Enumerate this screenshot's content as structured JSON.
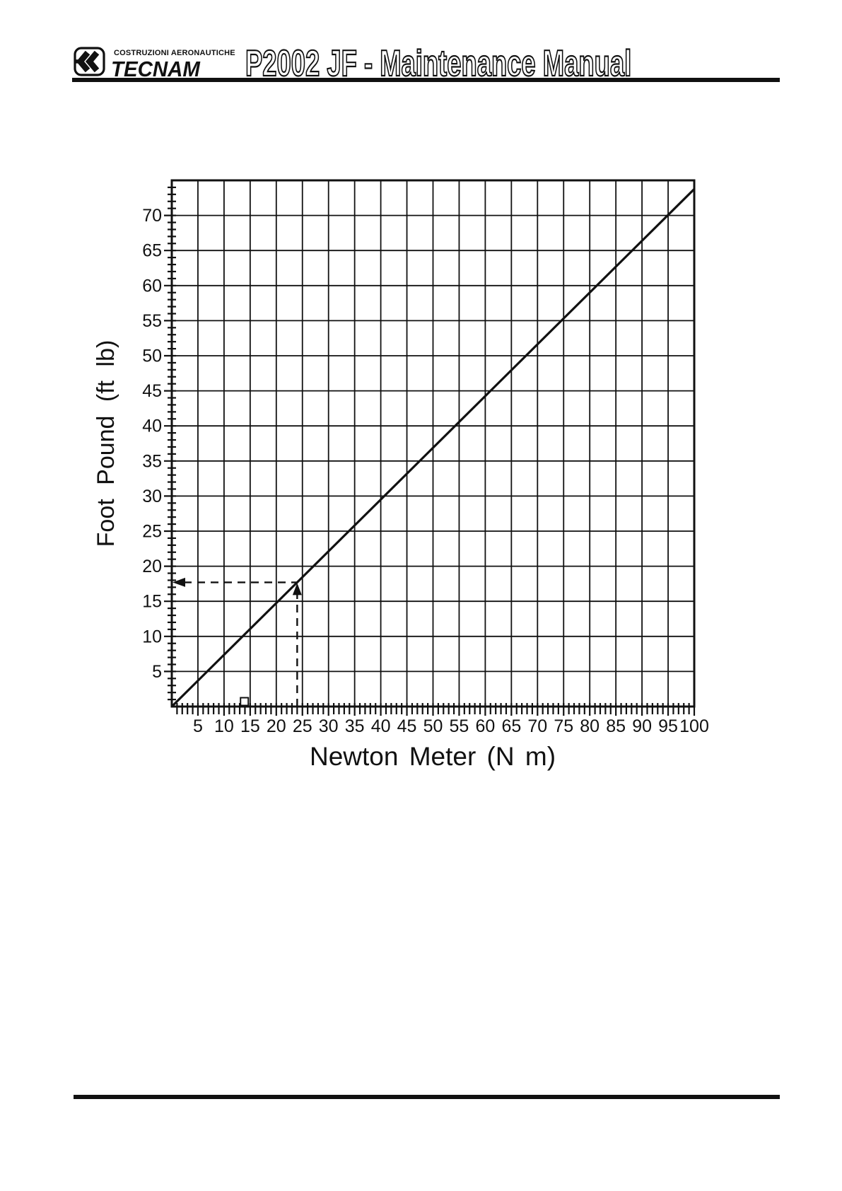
{
  "header": {
    "brand": {
      "tagline": "COSTRUZIONI AERONAUTICHE",
      "name": "TECNAM",
      "icon": "double-chevron-left-logo"
    },
    "title": "P2002 JF - Maintenance Manual"
  },
  "chart_data": {
    "type": "line",
    "xlabel": "Newton Meter (N m)",
    "ylabel": "Foot Pound (ft lb)",
    "xlim": [
      0,
      100
    ],
    "ylim": [
      0,
      75
    ],
    "x_major_ticks": [
      5,
      10,
      15,
      20,
      25,
      30,
      35,
      40,
      45,
      50,
      55,
      60,
      65,
      70,
      75,
      80,
      85,
      90,
      95,
      100
    ],
    "y_major_ticks": [
      5,
      10,
      15,
      20,
      25,
      30,
      35,
      40,
      45,
      50,
      55,
      60,
      65,
      70
    ],
    "x_minor_step": 1,
    "y_minor_step": 1,
    "grid": "major-both",
    "legend": "none",
    "series": [
      {
        "name": "newton-meter-to-foot-pound-conversion-line",
        "ftlb_per_nm": 0.7376,
        "points": [
          [
            0,
            0
          ],
          [
            100,
            73.76
          ]
        ]
      }
    ],
    "annotations": {
      "dashed_example": {
        "newton_meter": 24,
        "foot_pound": 17.7,
        "style": "dashed guides with arrowheads: up arrow at line intersection, left arrow at y-axis"
      }
    },
    "artifact": {
      "type": "small-square-scan-mark-on-x-axis",
      "nm_position": 13.9
    },
    "ink_color": "#111111",
    "background": "#ffffff"
  }
}
